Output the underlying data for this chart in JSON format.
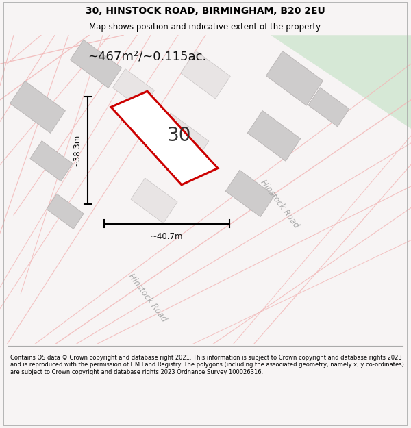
{
  "title": "30, HINSTOCK ROAD, BIRMINGHAM, B20 2EU",
  "subtitle": "Map shows position and indicative extent of the property.",
  "area_text": "~467m²/~0.115ac.",
  "number_label": "30",
  "width_label": "~40.7m",
  "height_label": "~38.3m",
  "road_label_1": "Hinstock Road",
  "road_label_2": "Hinstock Road",
  "footer_text": "Contains OS data © Crown copyright and database right 2021. This information is subject to Crown copyright and database rights 2023 and is reproduced with the permission of HM Land Registry. The polygons (including the associated geometry, namely x, y co-ordinates) are subject to Crown copyright and database rights 2023 Ordnance Survey 100026316.",
  "bg_color": "#f7f4f4",
  "map_bg": "#ffffff",
  "road_color_light": "#f2b8b8",
  "road_green_fill": "#d6e8d6",
  "plot_red": "#cc0000",
  "plot_fill": "#ffffff",
  "building_gray": "#cecccc",
  "building_edge": "#b8b4b4",
  "title_fontsize": 10,
  "subtitle_fontsize": 8.5,
  "footer_fontsize": 6.0
}
